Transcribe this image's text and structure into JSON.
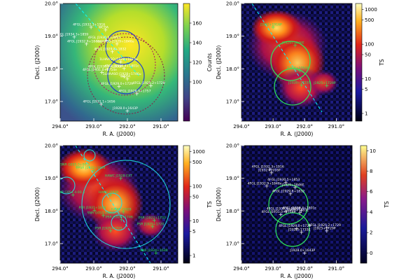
{
  "chart_data": [
    {
      "type": "heatmap",
      "panel": "top-left",
      "xlabel": "R. A. (J2000)",
      "ylabel": "Decl. (J2000)",
      "xlim": [
        294.0,
        290.5
      ],
      "ylim": [
        16.4,
        20.0
      ],
      "xticks": [
        "294.0°",
        "293.0°",
        "292.0°",
        "291.0°"
      ],
      "yticks": [
        "17.0°",
        "18.0°",
        "19.0°",
        "20.0°"
      ],
      "colorbar": {
        "label": "Counts",
        "min": 60,
        "max": 180,
        "ticks": [
          100,
          120,
          140,
          160
        ],
        "scale": "linear"
      },
      "annotations": [
        {
          "text": "WCDA",
          "ra": 292.65,
          "dec": 19.2
        },
        {
          "text": "4FGL J1932.3+1916",
          "ra": 293.08,
          "dec": 19.28
        },
        {
          "text": "4FGL J1934.3+1859",
          "ra": 293.58,
          "dec": 18.98
        },
        {
          "text": "4FGL J1930.5+1853",
          "ra": 292.63,
          "dec": 18.89
        },
        {
          "text": "4FGL J1932.9+1846e",
          "ra": 293.22,
          "dec": 18.77
        },
        {
          "text": "1LHAASO J1929+1846u",
          "ra": 292.31,
          "dec": 18.77
        },
        {
          "text": "4FGL J1929.8+1832",
          "ra": 292.45,
          "dec": 18.53
        },
        {
          "text": "1LHAASO J1928+1813u",
          "ra": 292.2,
          "dec": 18.22
        },
        {
          "text": "4FGL J1930.4+1800P",
          "ra": 292.6,
          "dec": 18.0
        },
        {
          "text": "4FGL J1928.4+1801c",
          "ra": 292.1,
          "dec": 18.02
        },
        {
          "text": "4FGL J1931.0+1754e",
          "ra": 292.76,
          "dec": 17.9
        },
        {
          "text": "1LHAASO J1928+1746u",
          "ra": 292.1,
          "dec": 17.77
        },
        {
          "text": "WCDA",
          "ra": 292.0,
          "dec": 17.7
        },
        {
          "text": "4FGL J1929.0+1729",
          "ra": 292.25,
          "dec": 17.47
        },
        {
          "text": "4FGL J1925.2+1729",
          "ra": 291.3,
          "dec": 17.49
        },
        {
          "text": "4FGL J1928.9+1757",
          "ra": 291.72,
          "dec": 17.25
        },
        {
          "text": "4FGL J1931.1+1656",
          "ra": 292.78,
          "dec": 16.93
        },
        {
          "text": "J1928.0+1643P",
          "ra": 292.0,
          "dec": 16.72
        }
      ]
    },
    {
      "type": "heatmap",
      "panel": "top-right",
      "xlabel": "R. A. (J2000)",
      "ylabel": "Decl. (J2000)",
      "xlim": [
        294.0,
        290.5
      ],
      "ylim": [
        16.4,
        20.0
      ],
      "xticks": [
        "294.0°",
        "293.0°",
        "292.0°",
        "291.0°"
      ],
      "yticks": [
        "17.0°",
        "18.0°",
        "19.0°",
        "20.0°"
      ],
      "colorbar": {
        "label": "TS",
        "scale": "log",
        "ticks": [
          1,
          5,
          10,
          50,
          100,
          500,
          1000
        ]
      },
      "annotations": [
        {
          "text": "J1932+1916P",
          "ra": 293.0,
          "dec": 19.28
        },
        {
          "text": "J1929+1846E",
          "ra": 292.3,
          "dec": 18.72
        },
        {
          "text": "J1928+1753E",
          "ra": 292.15,
          "dec": 17.95
        },
        {
          "text": "J1925+1729P",
          "ra": 291.3,
          "dec": 17.49
        },
        {
          "text": "J1928+1733E",
          "ra": 292.1,
          "dec": 17.5
        }
      ]
    },
    {
      "type": "heatmap",
      "panel": "bottom-left",
      "xlabel": "R. A. (J2000)",
      "ylabel": "Decl. (J2000)",
      "xlim": [
        294.0,
        290.5
      ],
      "ylim": [
        16.4,
        20.0
      ],
      "xticks": [
        "294.0°",
        "293.0°",
        "292.0°",
        "291.0°"
      ],
      "yticks": [
        "17.0°",
        "18.0°",
        "19.0°",
        "20.0°"
      ],
      "colorbar": {
        "label": "TS",
        "scale": "log",
        "ticks": [
          1,
          5,
          10,
          50,
          100,
          500,
          1000
        ]
      },
      "annotations": [
        {
          "text": "SNR G055.0+00.3",
          "ra": 293.5,
          "dec": 19.35
        },
        {
          "text": "HAWC J1928-EXT",
          "ra": 292.2,
          "dec": 19.0
        },
        {
          "text": "SNR G054.4-00.3",
          "ra": 293.62,
          "dec": 18.5
        },
        {
          "text": "HAWC J1930",
          "ra": 292.5,
          "dec": 18.5
        },
        {
          "text": "PSR J1932+1916",
          "ra": 293.0,
          "dec": 19.25
        },
        {
          "text": "PSR J1931+1439",
          "ra": 292.98,
          "dec": 18.03
        },
        {
          "text": "SNR G053.3-00.6",
          "ra": 292.72,
          "dec": 17.87
        },
        {
          "text": "HAWC J1928",
          "ra": 292.12,
          "dec": 17.97
        },
        {
          "text": "PSR J1928+1746",
          "ra": 292.18,
          "dec": 17.74
        },
        {
          "text": "PSR J1922+1733",
          "ra": 291.2,
          "dec": 17.72
        },
        {
          "text": "PSR J1925+1720",
          "ra": 291.25,
          "dec": 17.52
        },
        {
          "text": "PSR J1929+1725",
          "ra": 292.5,
          "dec": 17.4
        },
        {
          "text": "SNR J1924+1639",
          "ra": 291.15,
          "dec": 16.72
        }
      ]
    },
    {
      "type": "heatmap",
      "panel": "bottom-right",
      "xlabel": "R. A. (J2000)",
      "ylabel": "Decl. (J2000)",
      "xlim": [
        294.0,
        290.5
      ],
      "ylim": [
        16.4,
        20.0
      ],
      "xticks": [
        "294.0°",
        "293.0°",
        "292.0°",
        "291.0°"
      ],
      "yticks": [
        "17.0°",
        "18.0°",
        "19.0°",
        "20.0°"
      ],
      "colorbar": {
        "label": "TS",
        "scale": "linear",
        "min": -1,
        "max": 10.5,
        "ticks": [
          0,
          2,
          4,
          6,
          8,
          10
        ]
      },
      "annotations": [
        {
          "text": "4FGL J1932.3+1916",
          "ra": 293.1,
          "dec": 19.28
        },
        {
          "text": "J1932+1916P",
          "ra": 293.05,
          "dec": 19.17
        },
        {
          "text": "4FGL J1930.5+1853",
          "ra": 292.6,
          "dec": 18.89
        },
        {
          "text": "4FGL J1932.9+1846e",
          "ra": 293.2,
          "dec": 18.77
        },
        {
          "text": "4FGL J1929.8+1832",
          "ra": 292.45,
          "dec": 18.53
        },
        {
          "text": "J1929+1846E",
          "ra": 292.3,
          "dec": 18.72
        },
        {
          "text": "4FGL J1930.4+1800P",
          "ra": 292.6,
          "dec": 18.0
        },
        {
          "text": "4FGL J1928.4+1801c",
          "ra": 292.1,
          "dec": 18.02
        },
        {
          "text": "4FGL J1931.0+1754e",
          "ra": 292.76,
          "dec": 17.9
        },
        {
          "text": "J1928+1753E",
          "ra": 292.15,
          "dec": 17.95
        },
        {
          "text": "4FGL J1929.0+1729",
          "ra": 292.25,
          "dec": 17.47
        },
        {
          "text": "4FGL J1925.2+1729",
          "ra": 291.3,
          "dec": 17.49
        },
        {
          "text": "J1925+1729P",
          "ra": 291.3,
          "dec": 17.4
        },
        {
          "text": "J1928+1733E",
          "ra": 292.1,
          "dec": 17.35
        },
        {
          "text": "J1928.0+1643P",
          "ra": 292.0,
          "dec": 16.72
        }
      ]
    }
  ]
}
